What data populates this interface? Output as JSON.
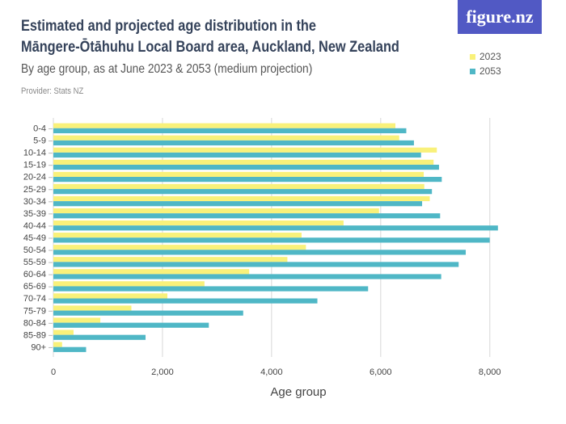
{
  "header": {
    "title_line1": "Estimated and projected age distribution in the",
    "title_line2": "Māngere-Ōtāhuhu Local Board area, Auckland, New Zealand",
    "subtitle": "By age group, as at June 2023 & 2053 (medium projection)",
    "provider": "Provider: Stats NZ",
    "logo": "figure.nz"
  },
  "chart_data": {
    "type": "bar",
    "orientation": "horizontal",
    "title": "Estimated and projected age distribution in the Māngere-Ōtāhuhu Local Board area, Auckland, New Zealand",
    "subtitle": "By age group, as at June 2023 & 2053 (medium projection)",
    "xlabel": "Age group",
    "ylabel": "",
    "xlim": [
      0,
      9000
    ],
    "xticks": [
      0,
      2000,
      4000,
      6000,
      8000
    ],
    "xtick_labels": [
      "0",
      "2,000",
      "4,000",
      "6,000",
      "8,000"
    ],
    "grid": true,
    "legend_position": "top-right",
    "categories": [
      "0-4",
      "5-9",
      "10-14",
      "15-19",
      "20-24",
      "25-29",
      "30-34",
      "35-39",
      "40-44",
      "45-49",
      "50-54",
      "55-59",
      "60-64",
      "65-69",
      "70-74",
      "75-79",
      "80-84",
      "85-89",
      "90+"
    ],
    "series": [
      {
        "name": "2023",
        "color": "#f9f17a",
        "values": [
          6270,
          6340,
          7030,
          6970,
          6790,
          6800,
          6900,
          5970,
          5320,
          4550,
          4630,
          4290,
          3590,
          2770,
          2090,
          1430,
          860,
          370,
          160
        ]
      },
      {
        "name": "2053",
        "color": "#4fb7c6",
        "values": [
          6470,
          6610,
          6740,
          7070,
          7120,
          6940,
          6760,
          7090,
          8150,
          8000,
          7560,
          7430,
          7110,
          5770,
          4840,
          3480,
          2850,
          1690,
          600
        ]
      }
    ]
  }
}
